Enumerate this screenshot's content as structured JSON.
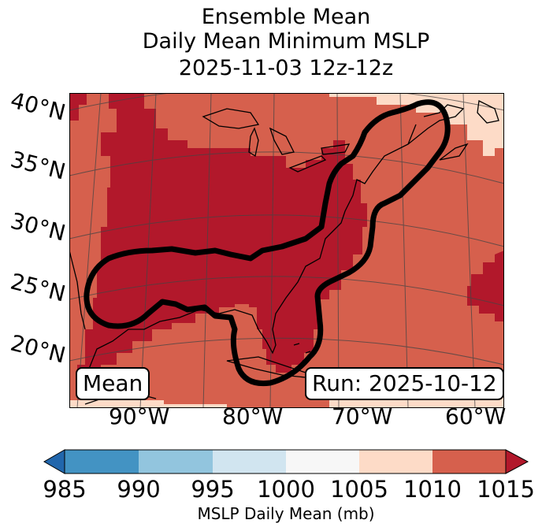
{
  "title": {
    "line1": "Ensemble Mean",
    "line2": "Daily Mean Minimum MSLP",
    "line3": "2025-11-03 12z-12z"
  },
  "map": {
    "lat_labels": [
      "40°N",
      "35°N",
      "30°N",
      "25°N",
      "20°N"
    ],
    "lon_labels": [
      "90°W",
      "80°W",
      "70°W",
      "60°W"
    ],
    "mean_badge": "Mean",
    "run_badge": "Run: 2025-10-12",
    "contour_color": "#000000"
  },
  "colorbar": {
    "ticks": [
      "985",
      "990",
      "995",
      "1000",
      "1005",
      "1010",
      "1015"
    ],
    "label": "MSLP Daily Mean (mb)",
    "colors": [
      "#2166ac",
      "#4393c3",
      "#92c5de",
      "#d1e5f0",
      "#f7f7f7",
      "#fddbc7",
      "#d6604d",
      "#b2182b"
    ]
  },
  "legend_colors": {
    "lt_1010": "#b2182b",
    "range_1005_1010": "#d6604d",
    "range_1000_1005": "#fddbc7"
  }
}
